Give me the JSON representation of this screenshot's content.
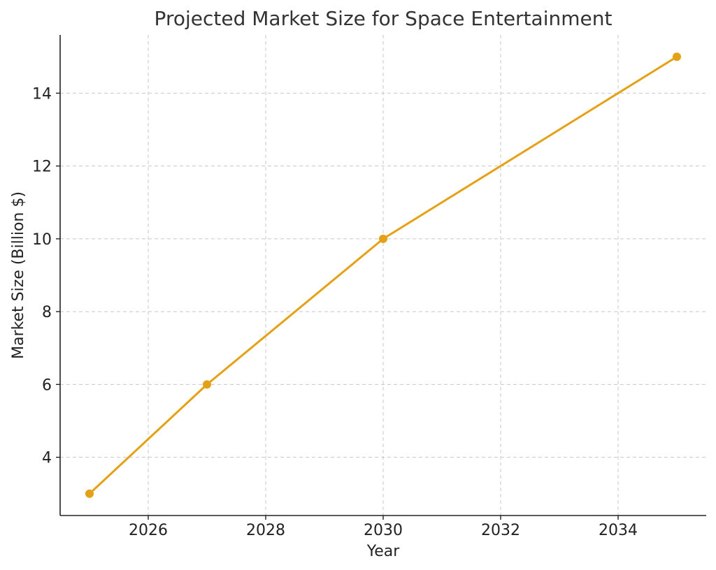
{
  "chart_data": {
    "type": "line",
    "title": "Projected Market Size for Space Entertainment",
    "xlabel": "Year",
    "ylabel": "Market Size (Billion $)",
    "x": [
      2025,
      2027,
      2030,
      2035
    ],
    "series": [
      {
        "values": [
          3,
          6,
          10,
          15
        ]
      }
    ],
    "xlim": [
      2024.5,
      2035.5
    ],
    "ylim": [
      2.4,
      15.6
    ],
    "xticks": [
      2026,
      2028,
      2030,
      2032,
      2034
    ],
    "yticks": [
      4,
      6,
      8,
      10,
      12,
      14
    ],
    "grid": true,
    "line_color": "#E5A116",
    "marker": "circle"
  }
}
